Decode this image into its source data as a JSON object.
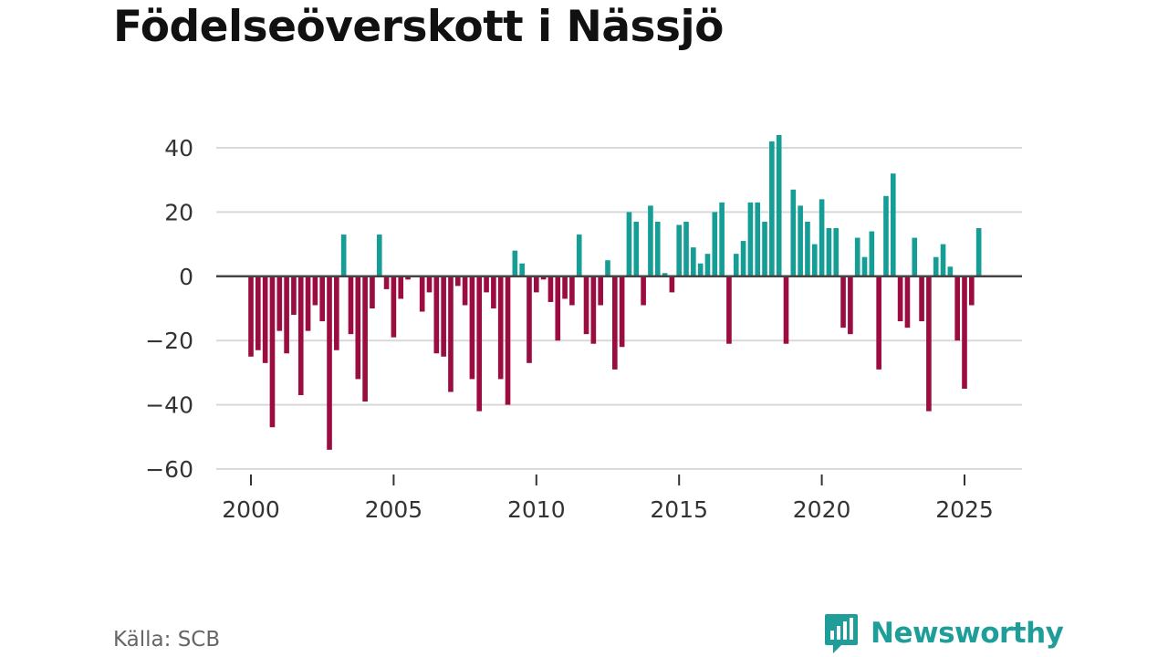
{
  "title": "Födelseöverskott i Nässjö",
  "source": "Källa: SCB",
  "brand": {
    "name": "Newsworthy",
    "icon": "bar-chart-icon"
  },
  "colors": {
    "positive": "#169e96",
    "negative": "#9b0d41",
    "grid": "#d9d9d9",
    "zero": "#444444",
    "brand": "#1f9e99"
  },
  "chart_data": {
    "type": "bar",
    "title": "Födelseöverskott i Nässjö",
    "xlabel": "",
    "ylabel": "",
    "ylim": [
      -60,
      45
    ],
    "xlim": [
      1999.75,
      2026.15
    ],
    "yticks": [
      -60,
      -40,
      -20,
      0,
      20,
      40
    ],
    "ytick_labels": [
      "−60",
      "−40",
      "−20",
      "0",
      "20",
      "40"
    ],
    "xticks": [
      2000,
      2005,
      2010,
      2015,
      2020,
      2025
    ],
    "xtick_labels": [
      "2000",
      "2005",
      "2010",
      "2015",
      "2020",
      "2025"
    ],
    "frequency": "quarterly",
    "start": 2000.0,
    "step": 0.25,
    "series": [
      {
        "name": "Födelseöverskott",
        "values": [
          -25,
          -23,
          -27,
          -47,
          -17,
          -24,
          -12,
          -37,
          -17,
          -9,
          -14,
          -54,
          -23,
          13,
          -18,
          -32,
          -39,
          -10,
          13,
          -4,
          -19,
          -7,
          -1,
          0,
          -11,
          -5,
          -24,
          -25,
          -36,
          -3,
          -9,
          -32,
          -42,
          -5,
          -10,
          -32,
          -40,
          8,
          4,
          -27,
          -5,
          -1,
          -8,
          -20,
          -7,
          -9,
          13,
          -18,
          -21,
          -9,
          5,
          -29,
          -22,
          20,
          17,
          -9,
          22,
          17,
          1,
          -5,
          16,
          17,
          9,
          4,
          7,
          20,
          23,
          -21,
          7,
          11,
          23,
          23,
          17,
          42,
          44,
          -21,
          27,
          22,
          17,
          10,
          24,
          15,
          15,
          -16,
          -18,
          12,
          6,
          14,
          -29,
          25,
          32,
          -14,
          -16,
          12,
          -14,
          -42,
          6,
          10,
          3,
          -20,
          -35,
          -9,
          15
        ]
      }
    ]
  }
}
